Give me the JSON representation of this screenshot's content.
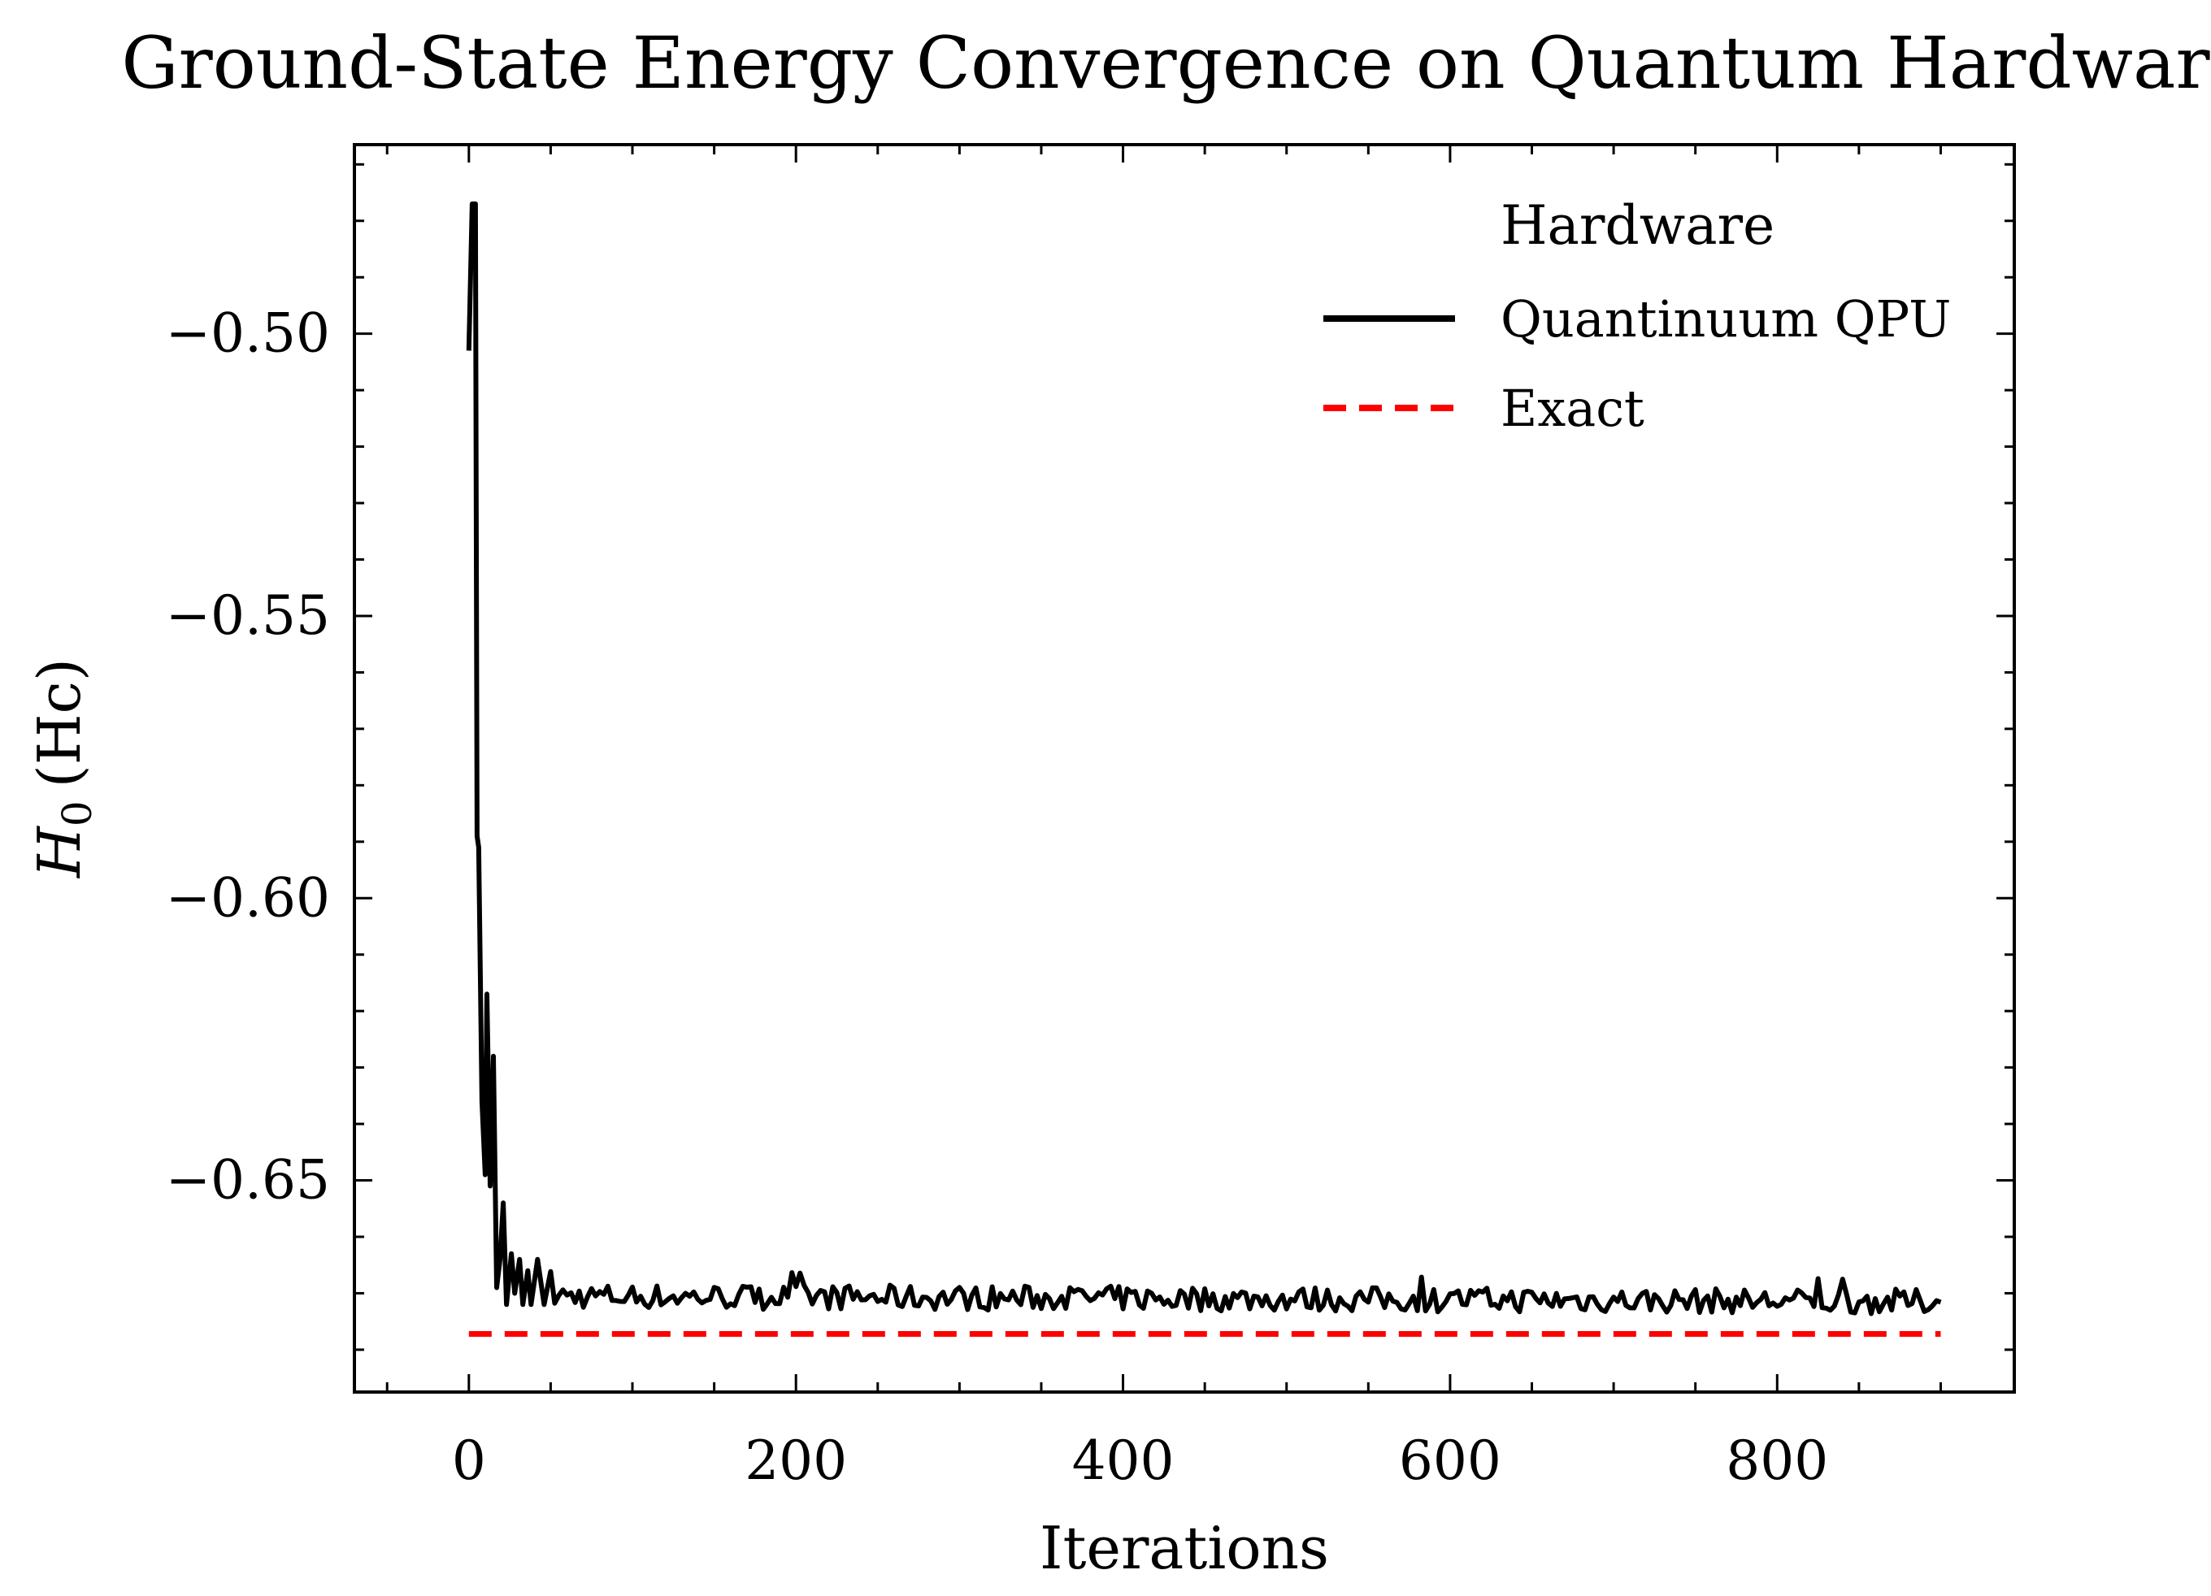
{
  "chart_data": {
    "type": "line",
    "title": "Ground-State Energy Convergence on Quantum Hardware",
    "xlabel": "Iterations",
    "ylabel": "H",
    "ylabel_subscript": "0",
    "ylabel_unit": "(Hc)",
    "xlim": [
      -70,
      945
    ],
    "ylim": [
      -0.6875,
      -0.4665
    ],
    "xticks": [
      0,
      200,
      400,
      600,
      800
    ],
    "xtick_labels": [
      "0",
      "200",
      "400",
      "600",
      "800"
    ],
    "yticks": [
      -0.65,
      -0.6,
      -0.55,
      -0.5
    ],
    "ytick_labels": [
      "−0.65",
      "−0.60",
      "−0.55",
      "−0.50"
    ],
    "x_minor_step": 50,
    "y_minor_step": 0.01,
    "grid": false,
    "legend": {
      "title": "Hardware",
      "position": "top-right",
      "entries": [
        {
          "label": "Quantinuum QPU",
          "style": "solid",
          "color": "#000000"
        },
        {
          "label": "Exact",
          "style": "dashed",
          "color": "#ff0000"
        }
      ]
    },
    "series": [
      {
        "name": "Quantinuum QPU",
        "color": "#000000",
        "style": "solid",
        "x_start": 0,
        "x_end": 900,
        "keypoints": [
          [
            0,
            -0.503
          ],
          [
            2,
            -0.477
          ],
          [
            4,
            -0.477
          ],
          [
            5,
            -0.589
          ],
          [
            6,
            -0.591
          ],
          [
            8,
            -0.636
          ],
          [
            10,
            -0.649
          ],
          [
            11,
            -0.617
          ],
          [
            13,
            -0.651
          ],
          [
            15,
            -0.628
          ],
          [
            17,
            -0.669
          ],
          [
            19,
            -0.664
          ],
          [
            21,
            -0.654
          ],
          [
            23,
            -0.672
          ],
          [
            26,
            -0.663
          ],
          [
            28,
            -0.67
          ],
          [
            31,
            -0.664
          ],
          [
            33,
            -0.672
          ],
          [
            36,
            -0.666
          ],
          [
            38,
            -0.672
          ],
          [
            42,
            -0.664
          ],
          [
            46,
            -0.672
          ]
        ],
        "steady_start": 50,
        "steady_center_start": -0.6705,
        "steady_center_end": -0.6715,
        "steady_noise": 0.0022,
        "steady_step": 2.5,
        "seed": 7
      },
      {
        "name": "Exact",
        "color": "#ff0000",
        "style": "dashed",
        "x": [
          0,
          900
        ],
        "y": [
          -0.6772,
          -0.6772
        ]
      }
    ]
  }
}
